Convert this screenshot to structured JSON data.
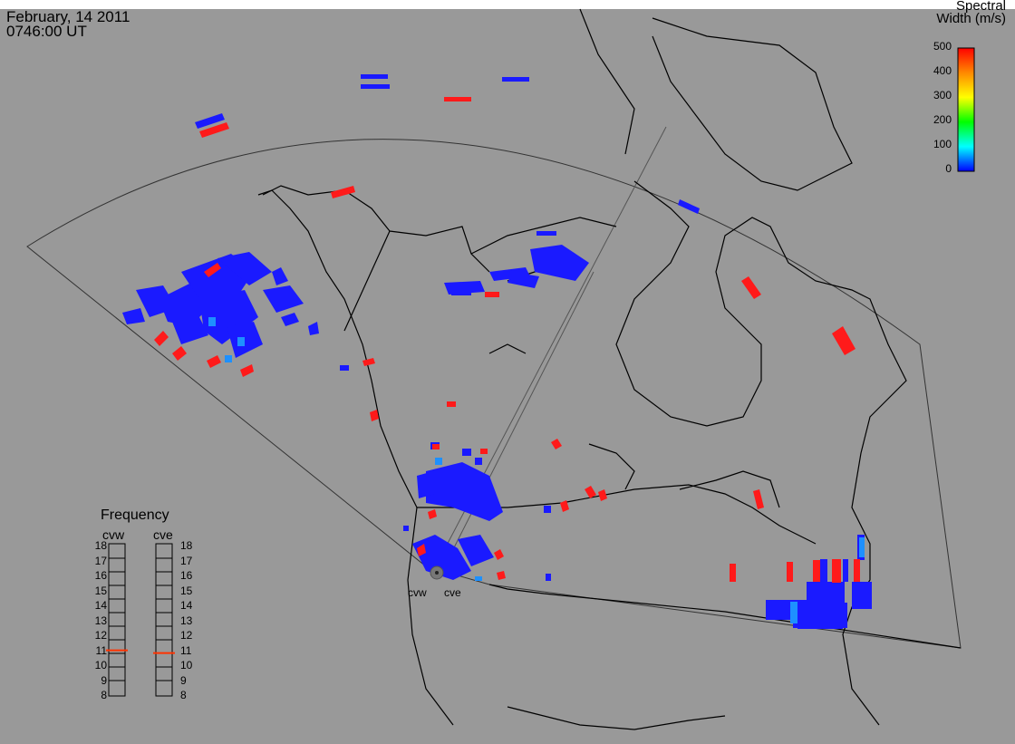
{
  "header": {
    "date": "February, 14 2011",
    "time": "0746:00 UT"
  },
  "colorbar": {
    "title_line1": "Spectral",
    "title_line2": "Width (m/s)",
    "ticks": [
      "500",
      "400",
      "300",
      "200",
      "100",
      "0"
    ],
    "colors": [
      "#ff0000",
      "#ff8800",
      "#ffff00",
      "#00ff00",
      "#00ffff",
      "#0000ff"
    ]
  },
  "frequency": {
    "title": "Frequency",
    "radars": [
      {
        "name": "cvw",
        "value_mhz": 10.8
      },
      {
        "name": "cve",
        "value_mhz": 10.6
      }
    ],
    "levels": [
      "18",
      "17",
      "16",
      "15",
      "14",
      "13",
      "12",
      "11",
      "10",
      "9",
      "8"
    ],
    "marker_color": "#ff3300"
  },
  "sites": [
    "cvw",
    "cve"
  ],
  "colors": {
    "background": "#999999",
    "coastline": "#000000",
    "low_width": "#1a1aff",
    "mid_width": "#1e90ff",
    "high_width": "#ff1a1a"
  }
}
